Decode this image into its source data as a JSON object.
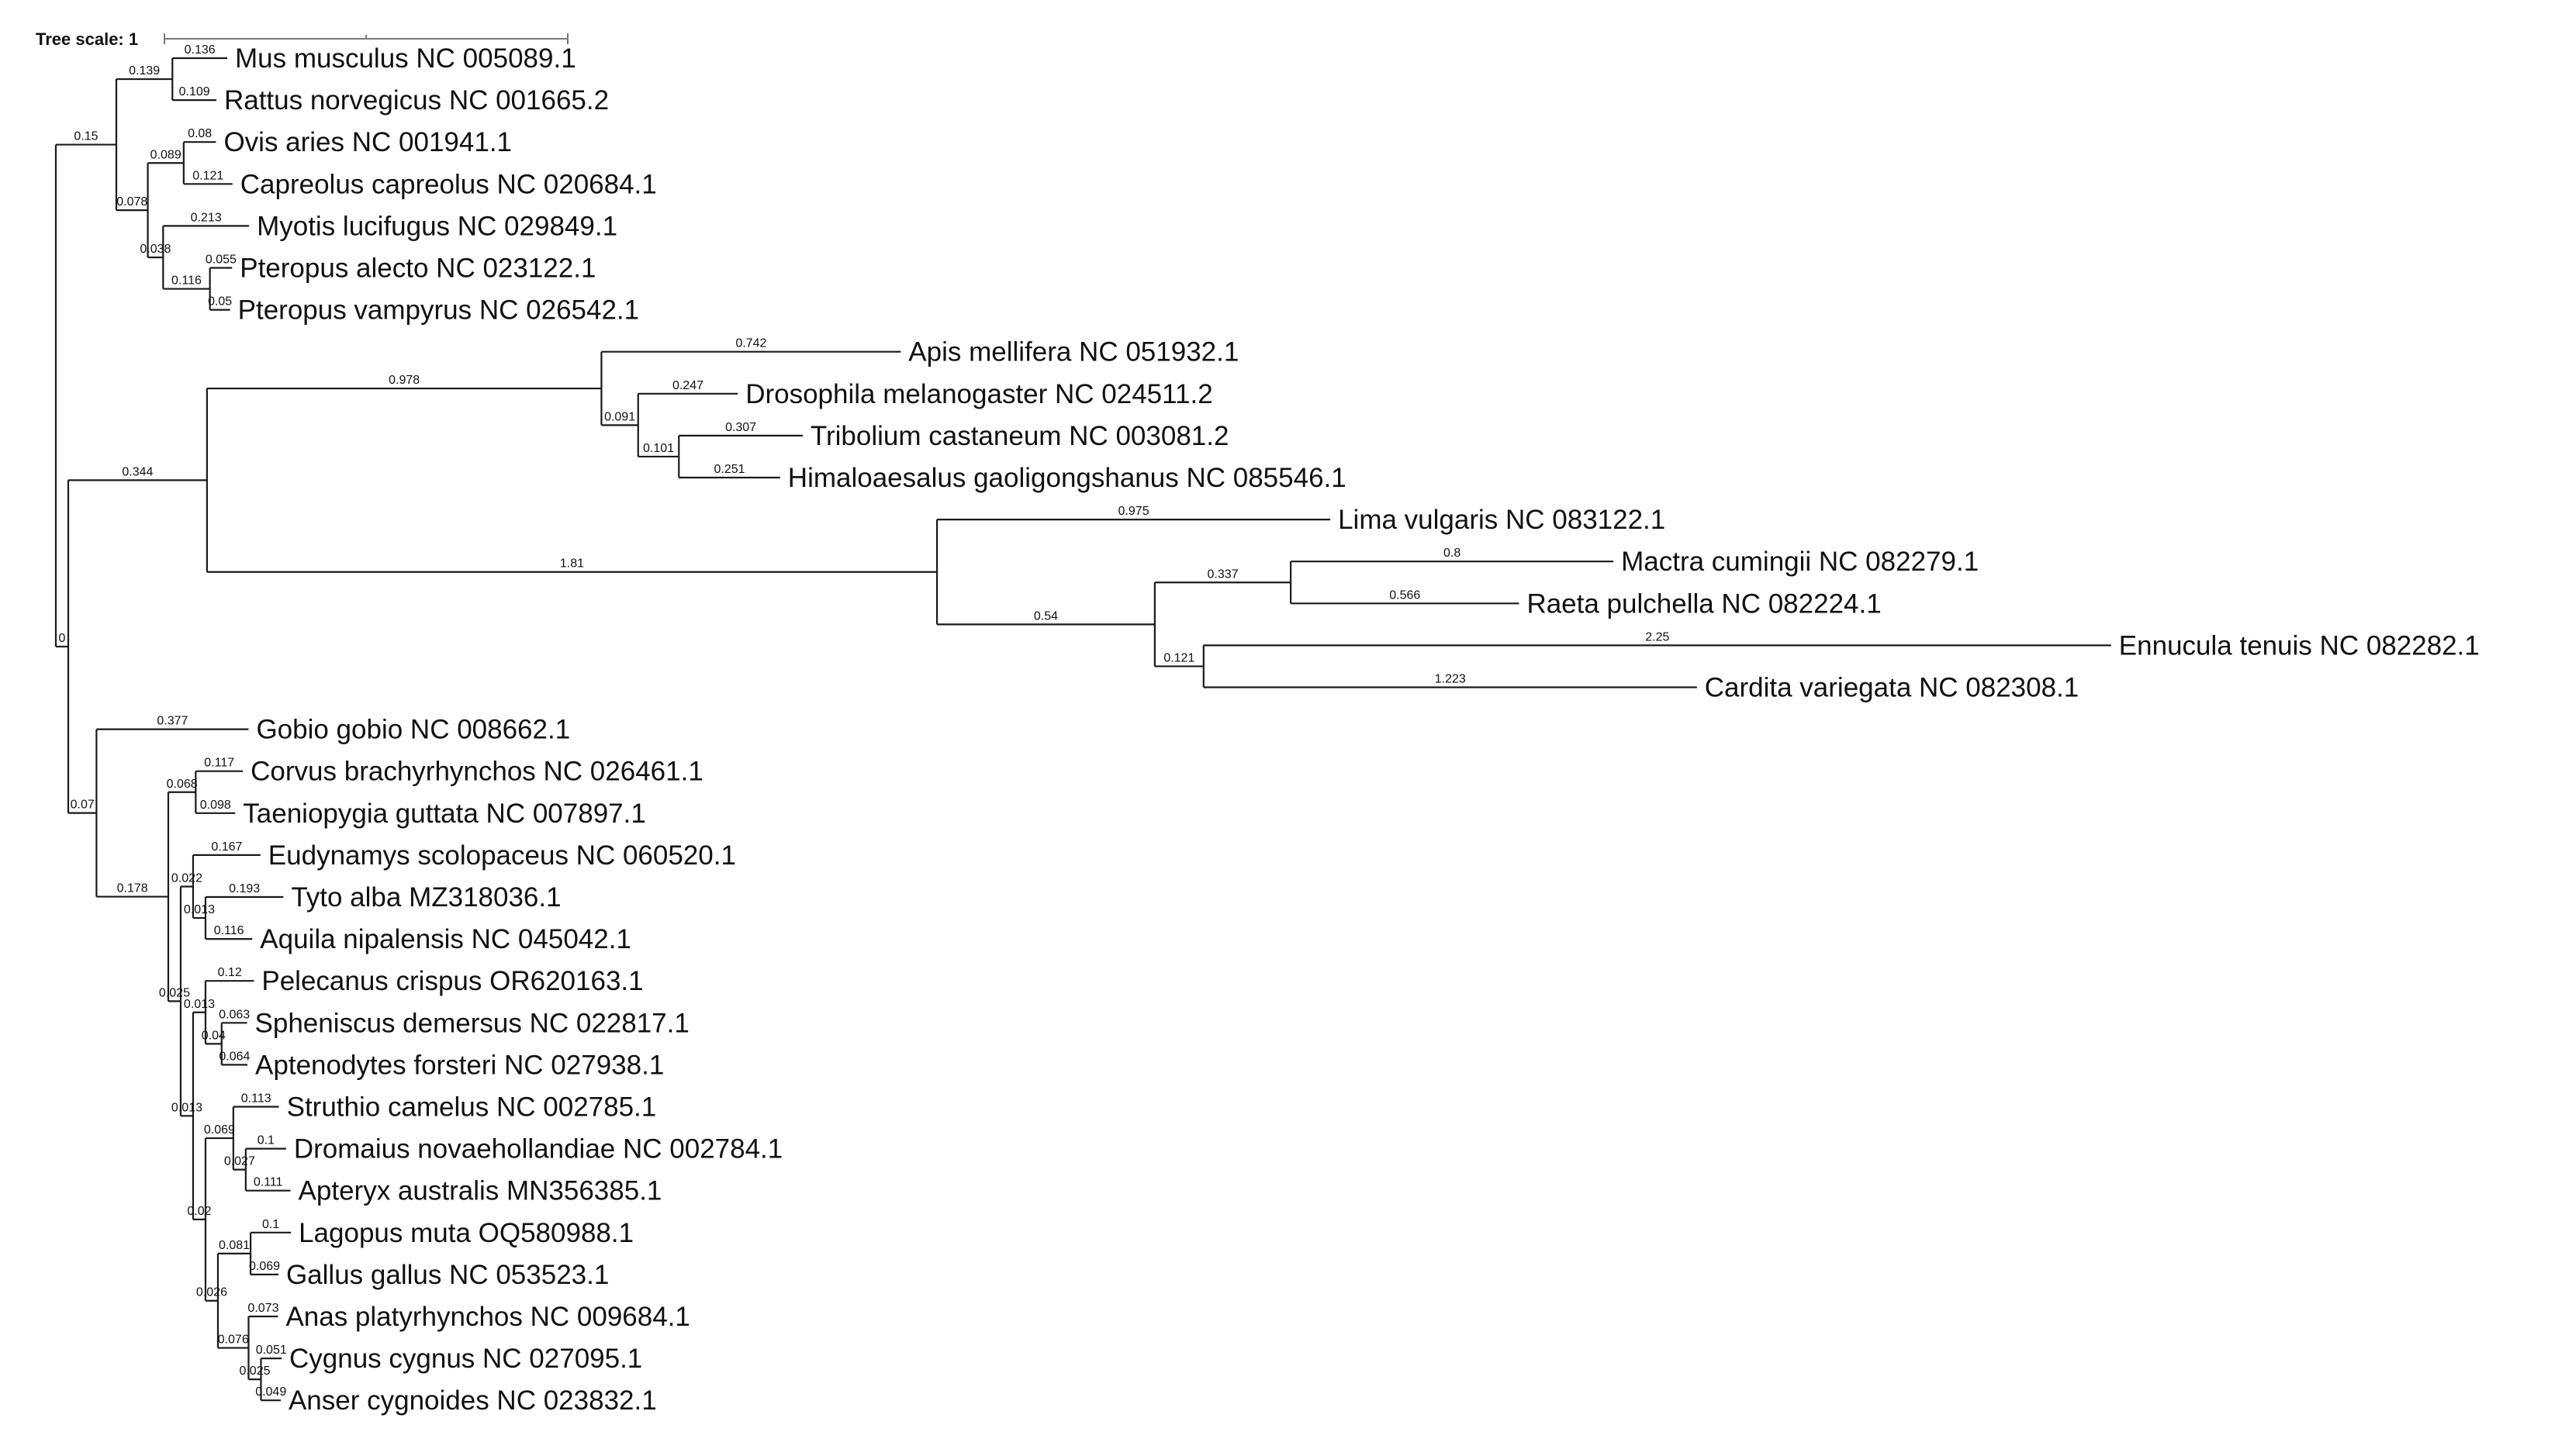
{
  "tree_scale": {
    "label": "Tree scale: 1",
    "value": 1
  },
  "tree": {
    "len": "",
    "children": [
      {
        "len": "0.15",
        "children": [
          {
            "len": "0.139",
            "children": [
              {
                "len": "0.136",
                "name": "Mus musculus NC 005089.1"
              },
              {
                "len": "0.109",
                "name": "Rattus norvegicus NC 001665.2"
              }
            ]
          },
          {
            "len": "0.078",
            "children": [
              {
                "len": "0.089",
                "children": [
                  {
                    "len": "0.08",
                    "name": "Ovis aries NC 001941.1"
                  },
                  {
                    "len": "0.121",
                    "name": "Capreolus capreolus NC 020684.1"
                  }
                ]
              },
              {
                "len": "0.038",
                "children": [
                  {
                    "len": "0.213",
                    "name": "Myotis lucifugus NC 029849.1"
                  },
                  {
                    "len": "0.116",
                    "children": [
                      {
                        "len": "0.055",
                        "name": "Pteropus alecto NC 023122.1"
                      },
                      {
                        "len": "0.05",
                        "name": "Pteropus vampyrus NC 026542.1"
                      }
                    ]
                  }
                ]
              }
            ]
          }
        ]
      },
      {
        "len": "0",
        "children": [
          {
            "len": "0.344",
            "children": [
              {
                "len": "0.978",
                "children": [
                  {
                    "len": "0.742",
                    "name": "Apis mellifera NC 051932.1"
                  },
                  {
                    "len": "0.091",
                    "children": [
                      {
                        "len": "0.247",
                        "name": "Drosophila melanogaster NC 024511.2"
                      },
                      {
                        "len": "0.101",
                        "children": [
                          {
                            "len": "0.307",
                            "name": "Tribolium castaneum NC 003081.2"
                          },
                          {
                            "len": "0.251",
                            "name": "Himaloaesalus gaoligongshanus NC 085546.1"
                          }
                        ]
                      }
                    ]
                  }
                ]
              },
              {
                "len": "1.81",
                "children": [
                  {
                    "len": "0.975",
                    "name": "Lima vulgaris NC 083122.1"
                  },
                  {
                    "len": "0.54",
                    "children": [
                      {
                        "len": "0.337",
                        "children": [
                          {
                            "len": "0.8",
                            "name": "Mactra cumingii NC 082279.1"
                          },
                          {
                            "len": "0.566",
                            "name": "Raeta pulchella NC 082224.1"
                          }
                        ]
                      },
                      {
                        "len": "0.121",
                        "children": [
                          {
                            "len": "2.25",
                            "name": "Ennucula tenuis NC 082282.1"
                          },
                          {
                            "len": "1.223",
                            "name": "Cardita variegata NC 082308.1"
                          }
                        ]
                      }
                    ]
                  }
                ]
              }
            ]
          },
          {
            "len": "0.07",
            "children": [
              {
                "len": "0.377",
                "name": "Gobio gobio NC 008662.1"
              },
              {
                "len": "0.178",
                "children": [
                  {
                    "len": "0.068",
                    "children": [
                      {
                        "len": "0.117",
                        "name": "Corvus brachyrhynchos NC 026461.1"
                      },
                      {
                        "len": "0.098",
                        "name": "Taeniopygia guttata NC 007897.1"
                      }
                    ]
                  },
                  {
                    "len": "0.025",
                    "children": [
                      {
                        "len": "0.022",
                        "children": [
                          {
                            "len": "0.167",
                            "name": "Eudynamys scolopaceus NC 060520.1"
                          },
                          {
                            "len": "0.013",
                            "children": [
                              {
                                "len": "0.193",
                                "name": "Tyto alba MZ318036.1"
                              },
                              {
                                "len": "0.116",
                                "name": "Aquila nipalensis NC 045042.1"
                              }
                            ]
                          }
                        ]
                      },
                      {
                        "len": "0.013",
                        "children": [
                          {
                            "len": "0.013",
                            "children": [
                              {
                                "len": "0.12",
                                "name": "Pelecanus crispus OR620163.1"
                              },
                              {
                                "len": "0.04",
                                "children": [
                                  {
                                    "len": "0.063",
                                    "name": "Spheniscus demersus NC 022817.1"
                                  },
                                  {
                                    "len": "0.064",
                                    "name": "Aptenodytes forsteri NC 027938.1"
                                  }
                                ]
                              }
                            ]
                          },
                          {
                            "len": "0.02",
                            "children": [
                              {
                                "len": "0.069",
                                "children": [
                                  {
                                    "len": "0.113",
                                    "name": "Struthio camelus NC 002785.1"
                                  },
                                  {
                                    "len": "0.027",
                                    "children": [
                                      {
                                        "len": "0.1",
                                        "name": "Dromaius novaehollandiae NC 002784.1"
                                      },
                                      {
                                        "len": "0.111",
                                        "name": "Apteryx australis MN356385.1"
                                      }
                                    ]
                                  }
                                ]
                              },
                              {
                                "len": "0.026",
                                "children": [
                                  {
                                    "len": "0.081",
                                    "children": [
                                      {
                                        "len": "0.1",
                                        "name": "Lagopus muta OQ580988.1"
                                      },
                                      {
                                        "len": "0.069",
                                        "name": "Gallus gallus NC 053523.1"
                                      }
                                    ]
                                  },
                                  {
                                    "len": "0.076",
                                    "children": [
                                      {
                                        "len": "0.073",
                                        "name": "Anas platyrhynchos NC 009684.1"
                                      },
                                      {
                                        "len": "0.025",
                                        "children": [
                                          {
                                            "len": "0.051",
                                            "name": "Cygnus cygnus NC 027095.1"
                                          },
                                          {
                                            "len": "0.049",
                                            "name": "Anser cygnoides NC 023832.1"
                                          }
                                        ]
                                      }
                                    ]
                                  }
                                ]
                              }
                            ]
                          }
                        ]
                      }
                    ]
                  }
                ]
              }
            ]
          }
        ]
      }
    ]
  }
}
